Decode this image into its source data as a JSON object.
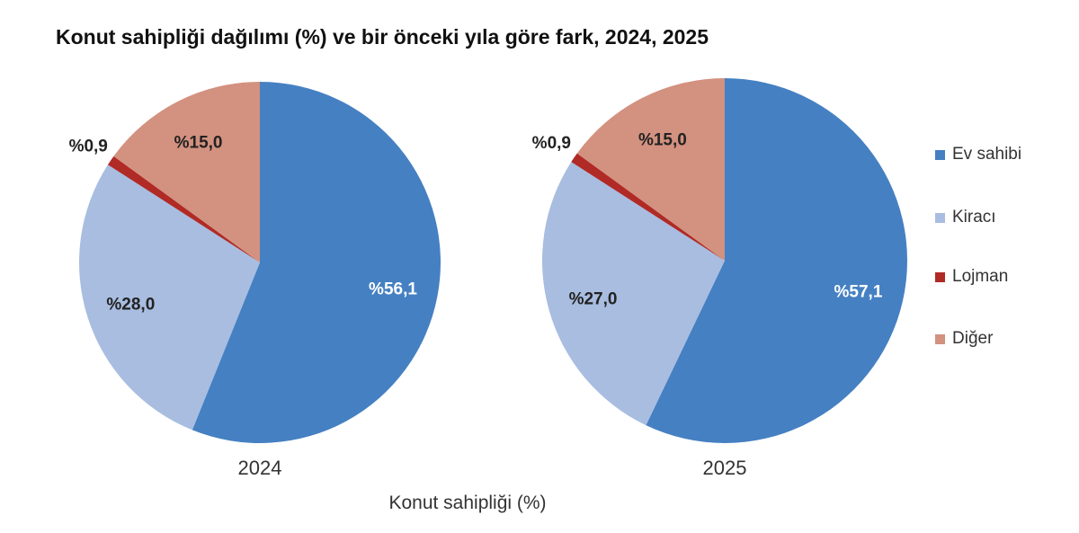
{
  "chart_data": {
    "type": "pie",
    "title": "Konut sahipliği dağılımı (%) ve bir önceki yıla göre fark, 2024, 2025",
    "xlabel": "Konut sahipliği (%)",
    "categories": [
      "Ev sahibi",
      "Kiracı",
      "Lojman",
      "Diğer"
    ],
    "colors": [
      "#4580c2",
      "#a8bde0",
      "#b02a26",
      "#d3917f"
    ],
    "legend_position": "right",
    "pies": [
      {
        "name": "2024",
        "values": [
          56.1,
          28.0,
          0.9,
          15.0
        ],
        "labels": [
          "%56,1",
          "%28,0",
          "%0,9",
          "%15,0"
        ]
      },
      {
        "name": "2025",
        "values": [
          57.1,
          27.0,
          0.9,
          15.0
        ],
        "labels": [
          "%57,1",
          "%27,0",
          "%0,9",
          "%15,0"
        ]
      }
    ]
  }
}
